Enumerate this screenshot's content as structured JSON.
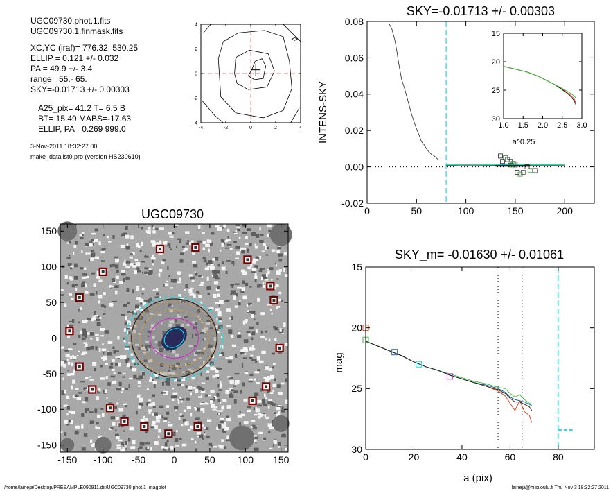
{
  "header": {
    "lines": [
      "UGC09730.phot.1.fits",
      "UGC09730.1.finmask.fits",
      "XC,YC (iraf)=   776.32, 530.25",
      "ELLIP = 0.121 +/- 0.032",
      "PA    =  49.9 +/-   3.4",
      "range=   55.-   65.",
      "SKY=-0.01713 +/- 0.00303"
    ],
    "params": [
      "A25_pix= 41.2   T= 6.5  B",
      "BT=  15.49   MABS=-17.63",
      "ELLIP, PA= 0.269   999.0"
    ],
    "date": "3-Nov-2011 18:32:27.00",
    "program": "make_datalist0.pro (version HS230610)"
  },
  "footer": {
    "left": "/home/laineja/Desktop/PRESAMPLE090911.dir/UGC09730.phot.1_magplot",
    "right": "laineja@hiisi.oulu.fi  Thu Nov  3 18:32:27 2011"
  },
  "colors": {
    "axis": "#000000",
    "cyan": "#00e5ee",
    "red": "#e8401c",
    "green": "#3fbf3f",
    "blue": "#1f5fa8",
    "dark": "#222222",
    "pink_dash": "#ee8888",
    "marker": "#7a0000",
    "mask_gray": "#707070"
  },
  "chart_data": [
    {
      "id": "centroid",
      "type": "contour",
      "title": "",
      "xlim": [
        -4,
        4
      ],
      "ylim": [
        -4,
        4
      ],
      "xticks": [
        "-4",
        "-2",
        "0",
        "2",
        "4"
      ],
      "yticks": [
        "4",
        "2",
        "0",
        "-2",
        "-4"
      ],
      "marker": [
        0.4,
        0.3
      ]
    },
    {
      "id": "intens",
      "type": "line",
      "title": "SKY=-0.01713 +/- 0.00303",
      "ylabel": "INTENS-SKY",
      "xlabel": "",
      "xlim": [
        0,
        230
      ],
      "ylim": [
        -0.02,
        0.08
      ],
      "xticks": [
        "0",
        "50",
        "100",
        "150",
        "200"
      ],
      "yticks": [
        "0.08",
        "0.06",
        "0.04",
        "0.02",
        "0.00",
        "-0.02"
      ],
      "vline": 80,
      "profile_x": [
        22,
        25,
        28,
        30,
        32,
        35,
        38,
        40,
        43,
        45,
        48,
        50,
        53,
        55,
        58,
        60,
        63,
        65,
        68,
        70,
        72
      ],
      "profile_y": [
        0.079,
        0.076,
        0.07,
        0.064,
        0.057,
        0.048,
        0.043,
        0.039,
        0.033,
        0.029,
        0.024,
        0.021,
        0.017,
        0.014,
        0.012,
        0.01,
        0.008,
        0.007,
        0.006,
        0.005,
        0.004
      ],
      "sky_x": [
        80,
        90,
        100,
        110,
        120,
        130,
        140,
        150,
        160,
        170,
        180,
        190,
        200
      ],
      "sky_y": [
        0.001,
        0.001,
        0.0008,
        0.0009,
        0.001,
        0.001,
        0.0012,
        0.0011,
        0.0009,
        0.001,
        0.0011,
        0.001,
        0.0009
      ],
      "boxes": [
        [
          135,
          0.006
        ],
        [
          140,
          0.005
        ],
        [
          142,
          0.004
        ],
        [
          145,
          0.003
        ],
        [
          148,
          0.002
        ],
        [
          150,
          0.001
        ],
        [
          152,
          -0.003
        ],
        [
          155,
          -0.004
        ],
        [
          158,
          -0.003
        ],
        [
          162,
          0.0
        ],
        [
          165,
          -0.002
        ],
        [
          170,
          -0.002
        ],
        [
          137,
          0.003
        ],
        [
          146,
          0.001
        ]
      ]
    },
    {
      "id": "inset",
      "type": "line",
      "title": "",
      "xlabel": "a^0.25",
      "xlim": [
        1.0,
        3.0
      ],
      "ylim": [
        15,
        30
      ],
      "xticks": [
        "1.0",
        "1.5",
        "2.0",
        "2.5",
        "3.0"
      ],
      "yticks": [
        "15",
        "20",
        "25",
        "30"
      ],
      "x": [
        1.0,
        1.3,
        1.6,
        1.9,
        2.1,
        2.3,
        2.45,
        2.6,
        2.7,
        2.8,
        2.85
      ],
      "series": [
        {
          "y": [
            20.8,
            21.3,
            21.8,
            22.6,
            23.3,
            24.0,
            24.6,
            25.3,
            25.8,
            26.5,
            27.2
          ]
        },
        {
          "y": [
            20.8,
            21.3,
            21.8,
            22.6,
            23.3,
            24.0,
            24.7,
            25.4,
            26.0,
            26.8,
            27.6
          ]
        },
        {
          "y": [
            20.8,
            21.3,
            21.8,
            22.6,
            23.3,
            24.0,
            24.5,
            25.1,
            25.5,
            26.0,
            26.4
          ]
        }
      ]
    },
    {
      "id": "image",
      "type": "scatter",
      "title": "UGC09730",
      "xlim": [
        -160,
        160
      ],
      "ylim": [
        -160,
        160
      ],
      "xticks": [
        "-150",
        "-100",
        "-50",
        "0",
        "50",
        "100",
        "150"
      ],
      "yticks": [
        "150",
        "100",
        "50",
        "0",
        "-50",
        "-100",
        "-150"
      ],
      "stars": [
        [
          -20,
          125
        ],
        [
          -100,
          93
        ],
        [
          30,
          127
        ],
        [
          103,
          110
        ],
        [
          -133,
          57
        ],
        [
          135,
          73
        ],
        [
          140,
          53
        ],
        [
          -147,
          10
        ],
        [
          148,
          -14
        ],
        [
          -133,
          -40
        ],
        [
          129,
          -68
        ],
        [
          -115,
          -72
        ],
        [
          110,
          -88
        ],
        [
          -90,
          -98
        ],
        [
          -70,
          -117
        ],
        [
          -42,
          -124
        ],
        [
          -8,
          -134
        ],
        [
          33,
          -124
        ]
      ],
      "ellipses": [
        {
          "a": 68,
          "b": 58,
          "color": "cyan"
        },
        {
          "a": 60,
          "b": 55,
          "color": "dark"
        },
        {
          "a": 58,
          "b": 51,
          "color": "orange"
        },
        {
          "a": 48,
          "b": 40,
          "color": "orange"
        },
        {
          "a": 34,
          "b": 28,
          "color": "magenta"
        },
        {
          "a": 15,
          "b": 12,
          "color": "cyan"
        }
      ]
    },
    {
      "id": "mag",
      "type": "line",
      "title": "SKY_m= -0.01630 +/- 0.01061",
      "xlabel": "a (pix)",
      "ylabel": "mag",
      "xlim": [
        0,
        95
      ],
      "ylim": [
        15,
        30
      ],
      "xticks": [
        "0",
        "20",
        "40",
        "60",
        "80"
      ],
      "yticks": [
        "15",
        "20",
        "25",
        "30"
      ],
      "vlines_dotted": [
        55,
        65
      ],
      "vline_cyan": 80,
      "x": [
        0,
        5,
        10,
        15,
        20,
        25,
        30,
        35,
        40,
        45,
        50,
        55,
        58,
        60,
        62,
        64,
        66,
        68,
        69
      ],
      "series": [
        {
          "name_color": "red",
          "y": [
            21.1,
            21.5,
            21.9,
            22.3,
            22.8,
            23.2,
            23.5,
            23.9,
            24.2,
            24.5,
            24.8,
            25.2,
            25.6,
            26.2,
            26.8,
            26.0,
            26.9,
            27.2,
            27.8
          ]
        },
        {
          "name_color": "green",
          "y": [
            21.1,
            21.5,
            21.9,
            22.3,
            22.8,
            23.2,
            23.5,
            23.8,
            24.1,
            24.4,
            24.6,
            24.9,
            25.0,
            25.4,
            25.7,
            25.5,
            25.9,
            26.2,
            26.3
          ]
        },
        {
          "name_color": "blue",
          "y": [
            21.1,
            21.5,
            21.9,
            22.3,
            22.8,
            23.2,
            23.5,
            23.9,
            24.2,
            24.5,
            24.7,
            25.0,
            25.3,
            25.7,
            25.9,
            26.0,
            26.1,
            26.3,
            26.4
          ]
        },
        {
          "name_color": "dark",
          "y": [
            21.1,
            21.5,
            21.9,
            22.3,
            22.8,
            23.2,
            23.5,
            23.9,
            24.2,
            24.5,
            24.8,
            25.1,
            25.4,
            25.8,
            26.1,
            26.1,
            26.3,
            26.5,
            26.8
          ]
        }
      ],
      "markers": [
        [
          0,
          20.0,
          "red"
        ],
        [
          0,
          21.0,
          "green"
        ],
        [
          12,
          22.0,
          "blue"
        ],
        [
          22,
          23.0,
          "cyan"
        ],
        [
          35,
          24.0,
          "magenta"
        ]
      ],
      "cyan_dash": [
        [
          80,
          82,
          86
        ],
        [
          28.4,
          28.4,
          28.4
        ]
      ]
    }
  ]
}
